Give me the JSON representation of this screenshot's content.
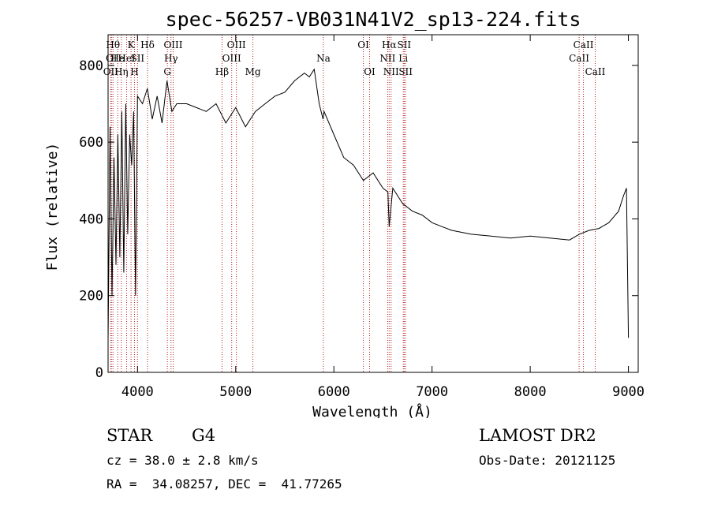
{
  "chart_data": {
    "type": "line",
    "title": "spec-56257-VB031N41V2_sp13-224.fits",
    "xlabel": "Wavelength (Å)",
    "ylabel": "Flux (relative)",
    "xlim": [
      3700,
      9100
    ],
    "ylim": [
      0,
      880
    ],
    "xticks": [
      4000,
      5000,
      6000,
      7000,
      8000,
      9000
    ],
    "yticks": [
      0,
      200,
      400,
      600,
      800
    ],
    "grid": false,
    "line_color": "#000000",
    "marker_color": "#b22222",
    "series": [
      {
        "x": [
          3700,
          3720,
          3740,
          3760,
          3780,
          3800,
          3820,
          3840,
          3860,
          3880,
          3900,
          3920,
          3940,
          3960,
          3980,
          4000,
          4050,
          4100,
          4150,
          4200,
          4250,
          4300,
          4350,
          4400,
          4500,
          4600,
          4700,
          4800,
          4900,
          5000,
          5100,
          5200,
          5300,
          5400,
          5500,
          5600,
          5700,
          5750,
          5800,
          5850,
          5890,
          5900,
          5950,
          6000,
          6100,
          6200,
          6300,
          6400,
          6500,
          6550,
          6563,
          6600,
          6700,
          6800,
          6900,
          7000,
          7100,
          7200,
          7400,
          7600,
          7800,
          8000,
          8200,
          8400,
          8500,
          8600,
          8700,
          8800,
          8900,
          8950,
          8980,
          9000
        ],
        "y": [
          80,
          640,
          200,
          560,
          280,
          620,
          300,
          680,
          260,
          700,
          360,
          620,
          540,
          680,
          200,
          720,
          700,
          740,
          660,
          720,
          650,
          760,
          680,
          700,
          700,
          690,
          680,
          700,
          650,
          690,
          640,
          680,
          700,
          720,
          730,
          760,
          780,
          770,
          790,
          700,
          660,
          680,
          650,
          620,
          560,
          540,
          500,
          520,
          480,
          470,
          380,
          480,
          440,
          420,
          410,
          390,
          380,
          370,
          360,
          355,
          350,
          355,
          350,
          345,
          360,
          370,
          375,
          390,
          420,
          460,
          480,
          90
        ]
      }
    ],
    "line_markers": [
      {
        "wavelength": 3727,
        "label": "OII",
        "row": 3
      },
      {
        "wavelength": 3734,
        "label": "OI",
        "row": 2
      },
      {
        "wavelength": 3750,
        "label": "Hθ",
        "row": 1
      },
      {
        "wavelength": 3798,
        "label": "He",
        "row": 2
      },
      {
        "wavelength": 3835,
        "label": "Hη",
        "row": 3
      },
      {
        "wavelength": 3889,
        "label": "HeI",
        "row": 2
      },
      {
        "wavelength": 3934,
        "label": "K",
        "row": 1
      },
      {
        "wavelength": 3969,
        "label": "H",
        "row": 3
      },
      {
        "wavelength": 4000,
        "label": "SII",
        "row": 2
      },
      {
        "wavelength": 4102,
        "label": "Hδ",
        "row": 1
      },
      {
        "wavelength": 4304,
        "label": "G",
        "row": 3
      },
      {
        "wavelength": 4341,
        "label": "Hγ",
        "row": 2
      },
      {
        "wavelength": 4363,
        "label": "OIII",
        "row": 1
      },
      {
        "wavelength": 4861,
        "label": "Hβ",
        "row": 3
      },
      {
        "wavelength": 4959,
        "label": "OIII",
        "row": 2
      },
      {
        "wavelength": 5007,
        "label": "OIII",
        "row": 1
      },
      {
        "wavelength": 5175,
        "label": "Mg",
        "row": 3
      },
      {
        "wavelength": 5893,
        "label": "Na",
        "row": 2
      },
      {
        "wavelength": 6300,
        "label": "OI",
        "row": 1
      },
      {
        "wavelength": 6364,
        "label": "OI",
        "row": 3
      },
      {
        "wavelength": 6548,
        "label": "NII",
        "row": 2
      },
      {
        "wavelength": 6563,
        "label": "Hα",
        "row": 1
      },
      {
        "wavelength": 6583,
        "label": "NII",
        "row": 3
      },
      {
        "wavelength": 6707,
        "label": "Li",
        "row": 2
      },
      {
        "wavelength": 6716,
        "label": "SII",
        "row": 1
      },
      {
        "wavelength": 6731,
        "label": "SII",
        "row": 3
      },
      {
        "wavelength": 8498,
        "label": "CaII",
        "row": 2
      },
      {
        "wavelength": 8542,
        "label": "CaII",
        "row": 1
      },
      {
        "wavelength": 8662,
        "label": "CaII",
        "row": 3
      }
    ]
  },
  "info": {
    "object_class": "STAR",
    "subclass": "G4",
    "survey": "LAMOST DR2",
    "redshift": "cz = 38.0 ± 2.8 km/s",
    "obs_date": "Obs-Date: 20121125",
    "coords": "RA =  34.08257, DEC =  41.77265"
  }
}
